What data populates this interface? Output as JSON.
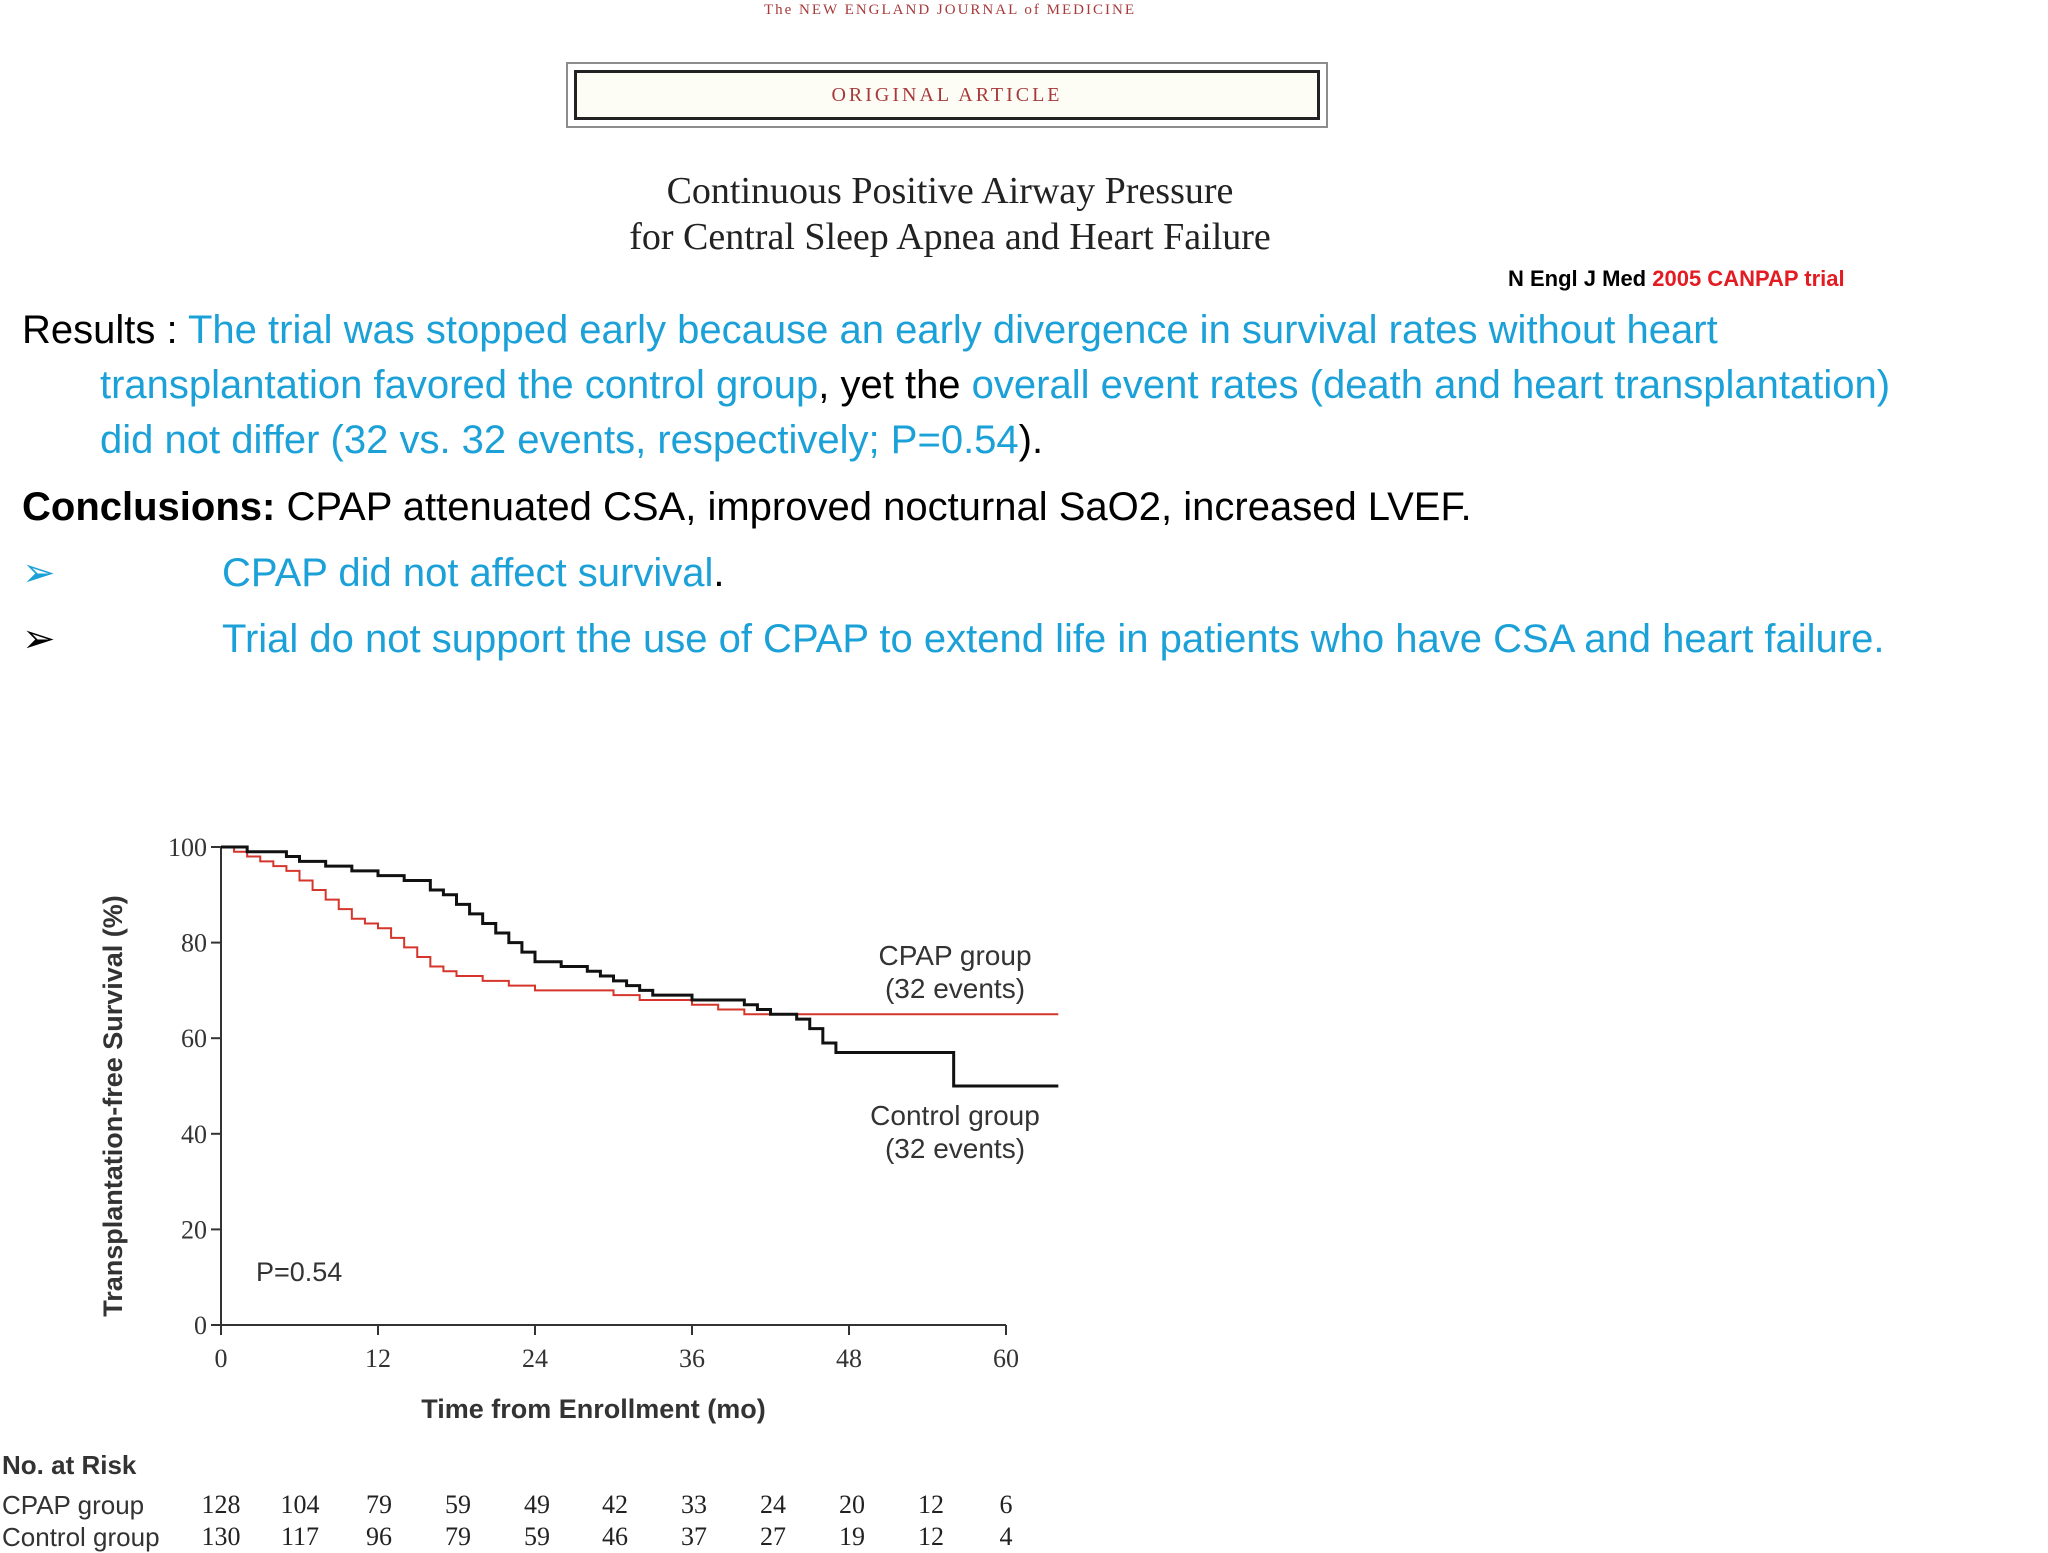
{
  "header": {
    "journal": "The NEW ENGLAND JOURNAL of MEDICINE",
    "article_type": "ORIGINAL ARTICLE",
    "title_line1": "Continuous Positive Airway Pressure",
    "title_line2": "for Central Sleep Apnea and Heart Failure"
  },
  "citation": {
    "journal": "N Engl J Med ",
    "trial": "2005 CANPAP trial"
  },
  "results": {
    "label": "Results : ",
    "part1": "The trial was stopped early because an early divergence in survival rates without heart",
    "part2": "transplantation favored the control group",
    "part3": ", yet the ",
    "part4": "overall event rates (death and heart transplantation)",
    "part5": "did not differ (32 vs. 32 events, respectively; P=0.54",
    "part6": ")."
  },
  "conclusions": {
    "label": "Conclusions:",
    "text": " CPAP attenuated CSA, improved nocturnal  SaO2, increased LVEF."
  },
  "bullets": [
    {
      "arrow": "➢",
      "text": "CPAP did not affect survival",
      "suffix": "."
    },
    {
      "arrow": "➢",
      "text": "Trial  do not support the use of CPAP to extend life in patients who have CSA and heart failure.",
      "suffix": ""
    }
  ],
  "colors": {
    "highlight": "#1ba1d8",
    "citation_red": "#e31b23",
    "cpap_line": "#d6352b",
    "control_line": "#111111"
  },
  "chart_data": {
    "type": "line",
    "xlabel": "Time from Enrollment (mo)",
    "ylabel": "Transplantation-free Survival (%)",
    "xlim": [
      0,
      60
    ],
    "ylim": [
      0,
      100
    ],
    "xticks": [
      0,
      12,
      24,
      36,
      48,
      60
    ],
    "yticks": [
      0,
      20,
      40,
      60,
      80,
      100
    ],
    "annotation": "P=0.54",
    "series": [
      {
        "name": "CPAP group",
        "label_line1": "CPAP group",
        "label_line2": "(32 events)",
        "color": "#d6352b",
        "step": [
          [
            0,
            100
          ],
          [
            1,
            99
          ],
          [
            2,
            98
          ],
          [
            3,
            97
          ],
          [
            4,
            96
          ],
          [
            5,
            95
          ],
          [
            6,
            93
          ],
          [
            7,
            91
          ],
          [
            8,
            89
          ],
          [
            9,
            87
          ],
          [
            10,
            85
          ],
          [
            11,
            84
          ],
          [
            12,
            83
          ],
          [
            13,
            81
          ],
          [
            14,
            79
          ],
          [
            15,
            77
          ],
          [
            16,
            75
          ],
          [
            17,
            74
          ],
          [
            18,
            73
          ],
          [
            19,
            73
          ],
          [
            20,
            72
          ],
          [
            22,
            71
          ],
          [
            24,
            70
          ],
          [
            26,
            70
          ],
          [
            28,
            70
          ],
          [
            30,
            69
          ],
          [
            32,
            68
          ],
          [
            36,
            67
          ],
          [
            38,
            66
          ],
          [
            40,
            65
          ],
          [
            44,
            65
          ],
          [
            64,
            65
          ]
        ]
      },
      {
        "name": "Control group",
        "label_line1": "Control group",
        "label_line2": "(32 events)",
        "color": "#111111",
        "step": [
          [
            0,
            100
          ],
          [
            2,
            99
          ],
          [
            4,
            99
          ],
          [
            5,
            98
          ],
          [
            6,
            97
          ],
          [
            8,
            96
          ],
          [
            10,
            95
          ],
          [
            12,
            94
          ],
          [
            14,
            93
          ],
          [
            16,
            91
          ],
          [
            17,
            90
          ],
          [
            18,
            88
          ],
          [
            19,
            86
          ],
          [
            20,
            84
          ],
          [
            21,
            82
          ],
          [
            22,
            80
          ],
          [
            23,
            78
          ],
          [
            24,
            76
          ],
          [
            26,
            75
          ],
          [
            28,
            74
          ],
          [
            29,
            73
          ],
          [
            30,
            72
          ],
          [
            31,
            71
          ],
          [
            32,
            70
          ],
          [
            33,
            69
          ],
          [
            35,
            69
          ],
          [
            36,
            68
          ],
          [
            38,
            68
          ],
          [
            40,
            67
          ],
          [
            41,
            66
          ],
          [
            42,
            65
          ],
          [
            44,
            64
          ],
          [
            45,
            62
          ],
          [
            46,
            59
          ],
          [
            47,
            57
          ],
          [
            49,
            57
          ],
          [
            51,
            57
          ],
          [
            56,
            57
          ],
          [
            56,
            50
          ],
          [
            64,
            50
          ]
        ]
      }
    ]
  },
  "risk_table": {
    "title": "No. at Risk",
    "rows": [
      {
        "label": "CPAP group",
        "values": [
          "128",
          "104",
          "79",
          "59",
          "49",
          "42",
          "33",
          "24",
          "20",
          "12",
          "6"
        ]
      },
      {
        "label": "Control group",
        "values": [
          "130",
          "117",
          "96",
          "79",
          "59",
          "46",
          "37",
          "27",
          "19",
          "12",
          "4"
        ]
      }
    ]
  }
}
